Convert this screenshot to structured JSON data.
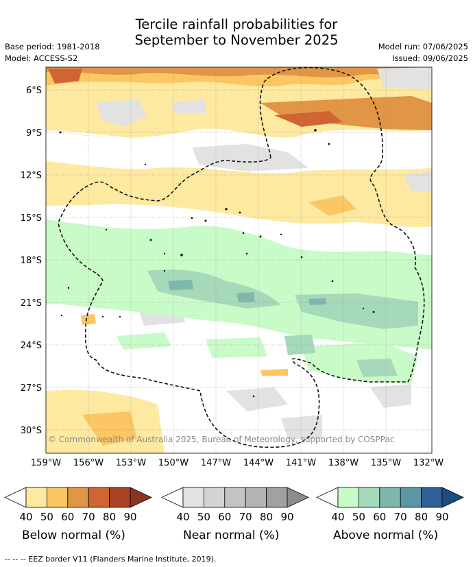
{
  "title": {
    "line1": "Tercile rainfall probabilities for",
    "line2": "September to November 2025"
  },
  "meta": {
    "base_period": "Base period: 1981-2018",
    "model": "Model: ACCESS-S2",
    "model_run": "Model run: 07/06/2025",
    "issued": "Issued: 09/06/2025"
  },
  "map": {
    "lat_labels": [
      "6°S",
      "9°S",
      "12°S",
      "15°S",
      "18°S",
      "21°S",
      "24°S",
      "27°S",
      "30°S"
    ],
    "lon_labels": [
      "159°W",
      "156°W",
      "153°W",
      "150°W",
      "147°W",
      "144°W",
      "141°W",
      "138°W",
      "135°W",
      "132°W"
    ],
    "copyright": "© Commonwealth of Australia 2025, Bureau of Meteorology, supported by COSPPac"
  },
  "legends": [
    {
      "label": "Below normal (%)",
      "ticks": [
        "40",
        "50",
        "60",
        "70",
        "80",
        "90"
      ],
      "colors": [
        "#fde9a0",
        "#fcc664",
        "#e09646",
        "#cf6532",
        "#a94424",
        "#8a3520"
      ]
    },
    {
      "label": "Near normal (%)",
      "ticks": [
        "40",
        "50",
        "60",
        "70",
        "80",
        "90"
      ],
      "colors": [
        "#e2e2e2",
        "#d3d3d3",
        "#c3c3c3",
        "#b3b3b3",
        "#a1a1a1",
        "#8c8c8c"
      ]
    },
    {
      "label": "Above normal (%)",
      "ticks": [
        "40",
        "50",
        "60",
        "70",
        "80",
        "90"
      ],
      "colors": [
        "#c9fbc8",
        "#a5d9b9",
        "#7fb7ac",
        "#5b96a2",
        "#2f5f94",
        "#1c4d80"
      ]
    }
  ],
  "footer": "-- -- -- EEZ border V11 (Flanders Marine Institute, 2019)."
}
